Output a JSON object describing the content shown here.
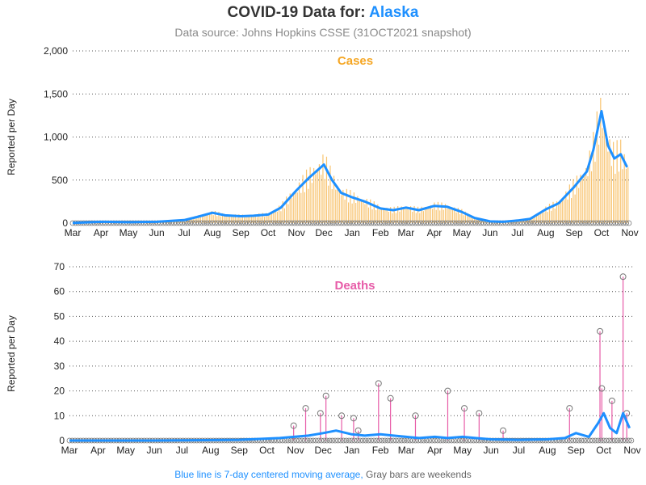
{
  "header": {
    "title_prefix": "COVID-19 Data for:",
    "state": "Alaska",
    "subtitle": "Data source: Johns Hopkins CSSE (31OCT2021 snapshot)"
  },
  "footnote": {
    "blue_part": "Blue line is 7-day centered moving average,",
    "gray_part": "Gray bars are weekends"
  },
  "colors": {
    "cases": "#f5a623",
    "cases_bar": "#f8c471",
    "deaths": "#e75ca8",
    "moving_avg": "#1e90ff",
    "weekend_bar": "#9e9e9e",
    "marker": "#777777"
  },
  "chart_data": [
    {
      "type": "bar",
      "title": "Cases",
      "ylabel": "Reported per Day",
      "ylim": [
        0,
        2000
      ],
      "yticks": [
        0,
        500,
        1000,
        1500,
        2000
      ],
      "ytick_labels": [
        "0",
        "500",
        "1,000",
        "1,500",
        "2,000"
      ],
      "xtick_labels": [
        "Mar",
        "Apr",
        "May",
        "Jun",
        "Jul",
        "Aug",
        "Sep",
        "Oct",
        "Nov",
        "Dec",
        "Jan",
        "Feb",
        "Mar",
        "Apr",
        "May",
        "Jun",
        "Jul",
        "Aug",
        "Sep",
        "Oct",
        "Nov"
      ],
      "grid": "horizontal dotted",
      "series": [
        {
          "name": "Blue line is 7-day centered moving average",
          "x": [
            "2020-03-01",
            "2020-04-01",
            "2020-05-01",
            "2020-06-01",
            "2020-07-01",
            "2020-07-15",
            "2020-08-01",
            "2020-08-15",
            "2020-09-01",
            "2020-09-15",
            "2020-10-01",
            "2020-10-15",
            "2020-11-01",
            "2020-11-15",
            "2020-12-01",
            "2020-12-10",
            "2020-12-20",
            "2021-01-01",
            "2021-01-15",
            "2021-02-01",
            "2021-02-15",
            "2021-03-01",
            "2021-03-15",
            "2021-04-01",
            "2021-04-15",
            "2021-05-01",
            "2021-05-15",
            "2021-06-01",
            "2021-06-15",
            "2021-07-01",
            "2021-07-15",
            "2021-08-01",
            "2021-08-15",
            "2021-09-01",
            "2021-09-15",
            "2021-09-22",
            "2021-10-01",
            "2021-10-08",
            "2021-10-15",
            "2021-10-22",
            "2021-10-29"
          ],
          "values": [
            2,
            15,
            10,
            15,
            35,
            70,
            120,
            90,
            80,
            85,
            100,
            180,
            380,
            530,
            680,
            500,
            350,
            300,
            250,
            170,
            150,
            180,
            150,
            200,
            190,
            130,
            60,
            20,
            15,
            30,
            50,
            160,
            230,
            420,
            600,
            850,
            1300,
            900,
            750,
            800,
            650
          ]
        }
      ]
    },
    {
      "type": "bar",
      "title": "Deaths",
      "ylabel": "Reported per Day",
      "ylim": [
        0,
        70
      ],
      "yticks": [
        0,
        10,
        20,
        30,
        40,
        50,
        60,
        70
      ],
      "ytick_labels": [
        "0",
        "10",
        "20",
        "30",
        "40",
        "50",
        "60",
        "70"
      ],
      "xtick_labels": [
        "Mar",
        "Apr",
        "May",
        "Jun",
        "Jul",
        "Aug",
        "Sep",
        "Oct",
        "Nov",
        "Dec",
        "Jan",
        "Feb",
        "Mar",
        "Apr",
        "May",
        "Jun",
        "Jul",
        "Aug",
        "Sep",
        "Oct",
        "Nov"
      ],
      "grid": "horizontal dotted",
      "series": [
        {
          "name": "Blue line is 7-day centered moving average",
          "x": [
            "2020-03-01",
            "2020-06-01",
            "2020-09-01",
            "2020-10-15",
            "2020-11-15",
            "2020-12-01",
            "2020-12-15",
            "2021-01-01",
            "2021-01-15",
            "2021-02-01",
            "2021-02-15",
            "2021-03-01",
            "2021-03-15",
            "2021-04-01",
            "2021-04-15",
            "2021-05-01",
            "2021-05-15",
            "2021-06-01",
            "2021-07-01",
            "2021-08-01",
            "2021-08-20",
            "2021-09-01",
            "2021-09-15",
            "2021-09-25",
            "2021-10-01",
            "2021-10-08",
            "2021-10-15",
            "2021-10-22",
            "2021-10-29"
          ],
          "values": [
            0,
            0,
            0.3,
            1,
            2,
            3,
            4,
            2.5,
            2,
            2.5,
            2,
            1.5,
            1,
            1.5,
            1,
            1.5,
            1,
            0.5,
            0.3,
            0.5,
            1,
            3,
            1.5,
            7,
            11,
            5,
            3,
            11,
            5
          ]
        }
      ],
      "spikes": {
        "x": [
          "2020-10-30",
          "2020-11-12",
          "2020-11-28",
          "2020-12-04",
          "2020-12-21",
          "2021-01-03",
          "2021-01-08",
          "2021-01-30",
          "2021-02-12",
          "2021-03-11",
          "2021-04-15",
          "2021-05-03",
          "2021-05-19",
          "2021-06-14",
          "2021-08-25",
          "2021-09-27",
          "2021-09-29",
          "2021-10-10",
          "2021-10-22",
          "2021-10-26"
        ],
        "values": [
          6,
          13,
          11,
          18,
          10,
          9,
          4,
          23,
          17,
          10,
          20,
          13,
          11,
          4,
          13,
          44,
          21,
          16,
          66,
          11
        ]
      }
    }
  ]
}
